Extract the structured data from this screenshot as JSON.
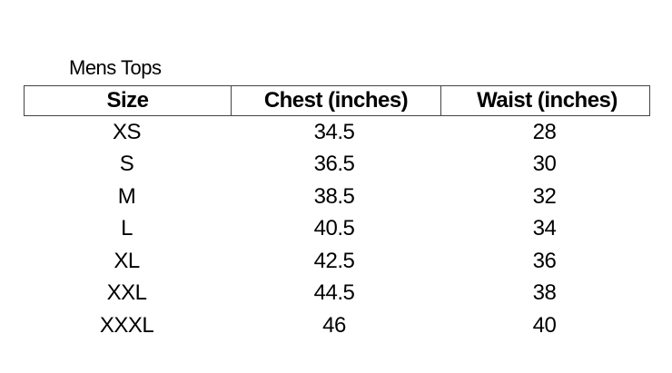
{
  "title": "Mens Tops",
  "columns": [
    "Size",
    "Chest (inches)",
    "Waist (inches)"
  ],
  "rows": [
    [
      "XS",
      "34.5",
      "28"
    ],
    [
      "S",
      "36.5",
      "30"
    ],
    [
      "M",
      "38.5",
      "32"
    ],
    [
      "L",
      "40.5",
      "34"
    ],
    [
      "XL",
      "42.5",
      "36"
    ],
    [
      "XXL",
      "44.5",
      "38"
    ],
    [
      "XXXL",
      "46",
      "40"
    ]
  ]
}
